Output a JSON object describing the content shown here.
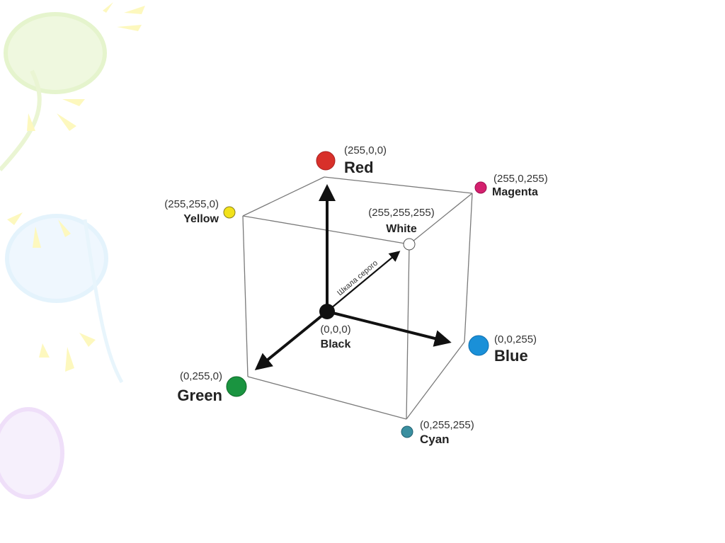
{
  "diagram": {
    "gray_scale_label": "Шкала серого",
    "vertices": {
      "red": {
        "coord": "(255,0,0)",
        "name": "Red",
        "color": "#d8302a"
      },
      "magenta": {
        "coord": "(255,0,255)",
        "name": "Magenta",
        "color": "#d4206e"
      },
      "yellow": {
        "coord": "(255,255,0)",
        "name": "Yellow",
        "color": "#f2e21a"
      },
      "white": {
        "coord": "(255,255,255)",
        "name": "White",
        "color": "#ffffff"
      },
      "black": {
        "coord": "(0,0,0)",
        "name": "Black",
        "color": "#111111"
      },
      "blue": {
        "coord": "(0,0,255)",
        "name": "Blue",
        "color": "#1a90d8"
      },
      "green": {
        "coord": "(0,255,0)",
        "name": "Green",
        "color": "#1a9440"
      },
      "cyan": {
        "coord": "(0,255,255)",
        "name": "Cyan",
        "color": "#3a8fa0"
      }
    }
  }
}
